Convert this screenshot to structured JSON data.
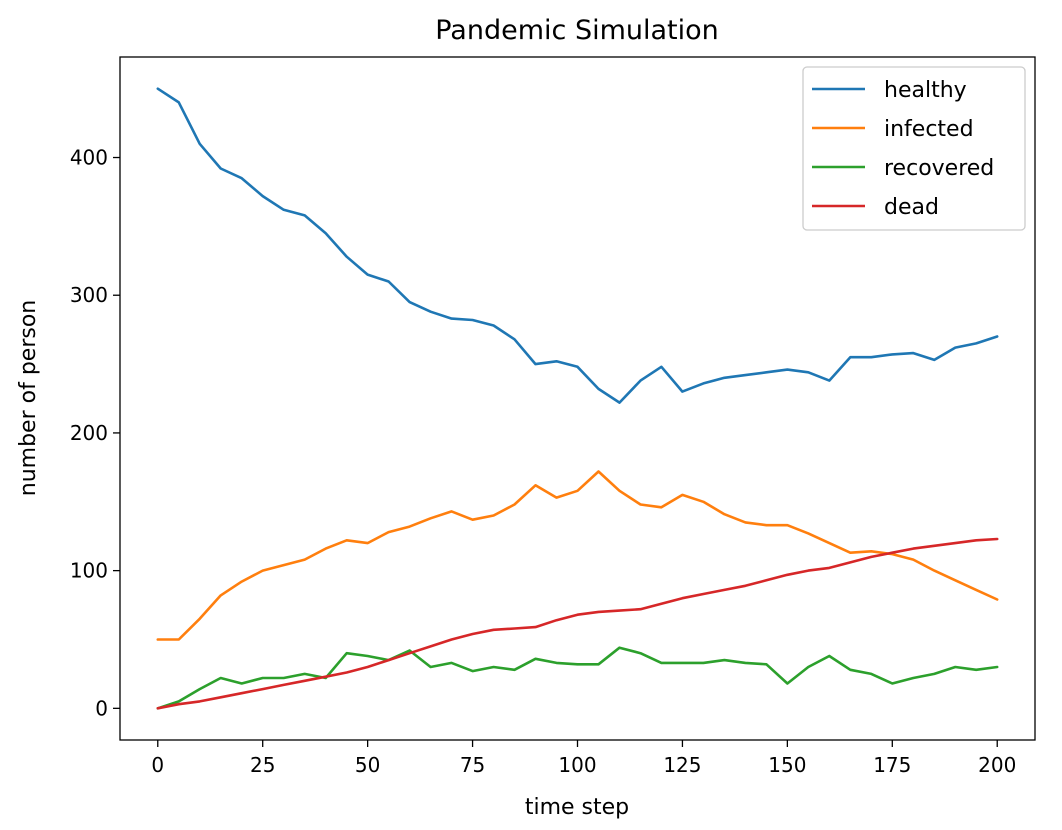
{
  "chart_data": {
    "type": "line",
    "title": "Pandemic Simulation",
    "xlabel": "time step",
    "ylabel": "number of person",
    "xlim": [
      -9,
      209
    ],
    "ylim": [
      -23,
      473
    ],
    "xticks": [
      0,
      25,
      50,
      75,
      100,
      125,
      150,
      175,
      200
    ],
    "yticks": [
      0,
      100,
      200,
      300,
      400
    ],
    "grid": false,
    "legend_position": "top-right",
    "series": [
      {
        "name": "healthy",
        "color": "#1f77b4",
        "x": [
          0,
          5,
          10,
          15,
          20,
          25,
          30,
          35,
          40,
          45,
          50,
          55,
          60,
          65,
          70,
          75,
          80,
          85,
          90,
          95,
          100,
          105,
          110,
          115,
          120,
          125,
          130,
          135,
          140,
          145,
          150,
          155,
          160,
          165,
          170,
          175,
          180,
          185,
          190,
          195,
          200
        ],
        "values": [
          450,
          440,
          410,
          392,
          385,
          372,
          362,
          358,
          345,
          328,
          315,
          310,
          295,
          288,
          283,
          282,
          278,
          268,
          250,
          252,
          248,
          232,
          222,
          238,
          248,
          230,
          236,
          240,
          242,
          244,
          246,
          244,
          238,
          255,
          255,
          257,
          258,
          253,
          262,
          265,
          270
        ]
      },
      {
        "name": "infected",
        "color": "#ff7f0e",
        "x": [
          0,
          5,
          10,
          15,
          20,
          25,
          30,
          35,
          40,
          45,
          50,
          55,
          60,
          65,
          70,
          75,
          80,
          85,
          90,
          95,
          100,
          105,
          110,
          115,
          120,
          125,
          130,
          135,
          140,
          145,
          150,
          155,
          160,
          165,
          170,
          175,
          180,
          185,
          190,
          195,
          200
        ],
        "values": [
          50,
          50,
          65,
          82,
          92,
          100,
          104,
          108,
          116,
          122,
          120,
          128,
          132,
          138,
          143,
          137,
          140,
          148,
          162,
          153,
          158,
          172,
          158,
          148,
          146,
          155,
          150,
          141,
          135,
          133,
          133,
          127,
          120,
          113,
          114,
          112,
          108,
          100,
          93,
          86,
          79
        ]
      },
      {
        "name": "recovered",
        "color": "#2ca02c",
        "x": [
          0,
          5,
          10,
          15,
          20,
          25,
          30,
          35,
          40,
          45,
          50,
          55,
          60,
          65,
          70,
          75,
          80,
          85,
          90,
          95,
          100,
          105,
          110,
          115,
          120,
          125,
          130,
          135,
          140,
          145,
          150,
          155,
          160,
          165,
          170,
          175,
          180,
          185,
          190,
          195,
          200
        ],
        "values": [
          0,
          5,
          14,
          22,
          18,
          22,
          22,
          25,
          22,
          40,
          38,
          35,
          42,
          30,
          33,
          27,
          30,
          28,
          36,
          33,
          32,
          32,
          44,
          40,
          33,
          33,
          33,
          35,
          33,
          32,
          18,
          30,
          38,
          28,
          25,
          18,
          22,
          25,
          30,
          28,
          30
        ]
      },
      {
        "name": "dead",
        "color": "#d62728",
        "x": [
          0,
          5,
          10,
          15,
          20,
          25,
          30,
          35,
          40,
          45,
          50,
          55,
          60,
          65,
          70,
          75,
          80,
          85,
          90,
          95,
          100,
          105,
          110,
          115,
          120,
          125,
          130,
          135,
          140,
          145,
          150,
          155,
          160,
          165,
          170,
          175,
          180,
          185,
          190,
          195,
          200
        ],
        "values": [
          0,
          3,
          5,
          8,
          11,
          14,
          17,
          20,
          23,
          26,
          30,
          35,
          40,
          45,
          50,
          54,
          57,
          58,
          59,
          64,
          68,
          70,
          71,
          72,
          76,
          80,
          83,
          86,
          89,
          93,
          97,
          100,
          102,
          106,
          110,
          113,
          116,
          118,
          120,
          122,
          123
        ]
      }
    ]
  }
}
